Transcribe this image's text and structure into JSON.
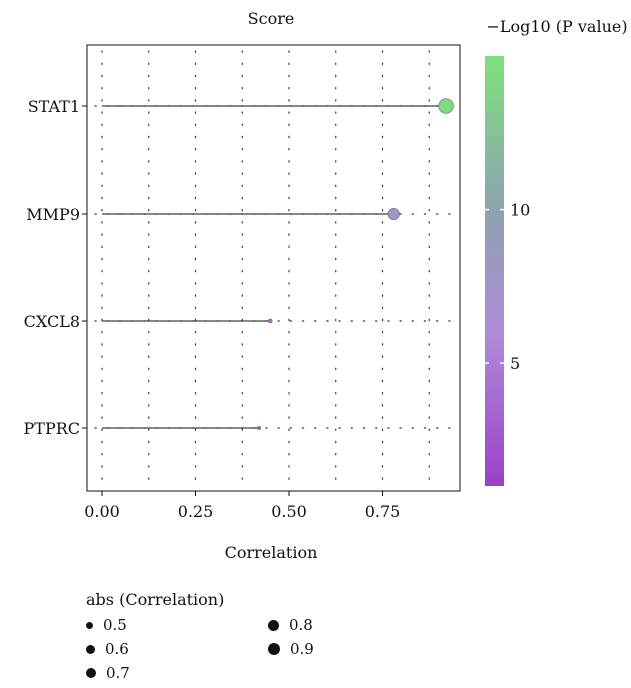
{
  "chart_data": {
    "type": "scatter",
    "subtype": "lollipop",
    "title": "Score",
    "xlabel": "Correlation",
    "ylabel": "",
    "xlim": [
      0,
      1
    ],
    "xticks": [
      "0.00",
      "0.25",
      "0.50",
      "0.75"
    ],
    "xtick_values": [
      0,
      0.25,
      0.5,
      0.75
    ],
    "categories": [
      "STAT1",
      "MMP9",
      "CXCL8",
      "PTPRC"
    ],
    "values": [
      0.92,
      0.78,
      0.45,
      0.42
    ],
    "neg_log10_p": [
      14.5,
      8.6,
      4.5,
      3.3
    ],
    "grid": "dotted",
    "color_legend": {
      "title": "−Log10 (P value)",
      "ticks": [
        "10",
        "5"
      ],
      "tick_values": [
        10,
        5
      ],
      "range": [
        1,
        15
      ],
      "color_low": "#9b40c8",
      "color_mid": "#8c9fb0",
      "color_high": "#7ee07c"
    },
    "size_legend": {
      "title": "abs (Correlation)",
      "values": [
        "0.5",
        "0.6",
        "0.7",
        "0.8",
        "0.9"
      ]
    }
  }
}
